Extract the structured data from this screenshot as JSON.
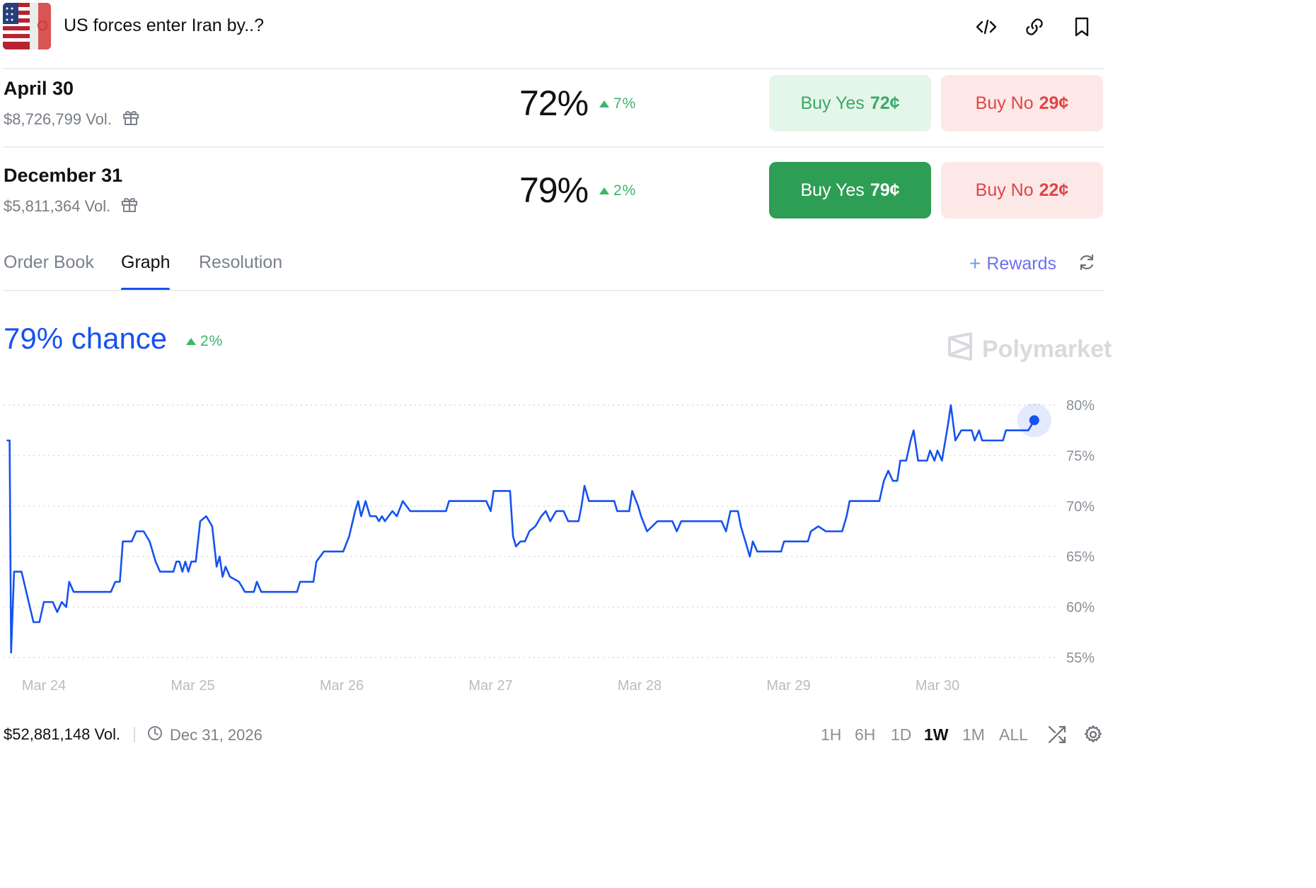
{
  "header": {
    "title": "US forces enter Iran by..?",
    "icons": [
      "embed-code-icon",
      "link-icon",
      "bookmark-icon"
    ]
  },
  "markets": [
    {
      "label": "April 30",
      "volume": "$8,726,799 Vol.",
      "percent": "72%",
      "change": "7%",
      "buy_yes_label": "Buy Yes",
      "buy_yes_price": "72¢",
      "buy_no_label": "Buy No",
      "buy_no_price": "29¢"
    },
    {
      "label": "December 31",
      "volume": "$5,811,364 Vol.",
      "percent": "79%",
      "change": "2%",
      "buy_yes_label": "Buy Yes",
      "buy_yes_price": "79¢",
      "buy_no_label": "Buy No",
      "buy_no_price": "22¢"
    }
  ],
  "tabs": [
    "Order Book",
    "Graph",
    "Resolution"
  ],
  "active_tab": "Graph",
  "rewards_label": "Rewards",
  "chance": {
    "text": "79% chance",
    "change": "2%"
  },
  "watermark": "Polymarket",
  "colors": {
    "line": "#1652f0",
    "up": "#3bb56b",
    "down": "#e04545",
    "yes_solid": "#2e9e55"
  },
  "chart_data": {
    "type": "line",
    "x_ticks": [
      "Mar 24",
      "Mar 25",
      "Mar 26",
      "Mar 27",
      "Mar 28",
      "Mar 29",
      "Mar 30"
    ],
    "y_ticks": [
      "55%",
      "60%",
      "65%",
      "70%",
      "75%",
      "80%"
    ],
    "ylim": [
      55,
      80
    ],
    "grid": true,
    "series": [
      {
        "values": [
          [
            0.0,
            76.5
          ],
          [
            0.02,
            76.5
          ],
          [
            0.03,
            55.5
          ],
          [
            0.05,
            63.5
          ],
          [
            0.1,
            63.5
          ],
          [
            0.18,
            58.5
          ],
          [
            0.22,
            58.5
          ],
          [
            0.25,
            60.5
          ],
          [
            0.31,
            60.5
          ],
          [
            0.34,
            59.5
          ],
          [
            0.37,
            60.5
          ],
          [
            0.4,
            60.0
          ],
          [
            0.42,
            62.5
          ],
          [
            0.45,
            61.5
          ],
          [
            0.7,
            61.5
          ],
          [
            0.73,
            62.5
          ],
          [
            0.76,
            62.5
          ],
          [
            0.78,
            66.5
          ],
          [
            0.84,
            66.5
          ],
          [
            0.87,
            67.5
          ],
          [
            0.92,
            67.5
          ],
          [
            0.96,
            66.5
          ],
          [
            1.0,
            64.5
          ],
          [
            1.03,
            63.5
          ],
          [
            1.12,
            63.5
          ],
          [
            1.14,
            64.5
          ],
          [
            1.16,
            64.5
          ],
          [
            1.18,
            63.5
          ],
          [
            1.2,
            64.5
          ],
          [
            1.22,
            63.5
          ],
          [
            1.24,
            64.5
          ],
          [
            1.27,
            64.5
          ],
          [
            1.3,
            68.5
          ],
          [
            1.34,
            69.0
          ],
          [
            1.36,
            68.5
          ],
          [
            1.38,
            68.0
          ],
          [
            1.41,
            64.0
          ],
          [
            1.43,
            65.0
          ],
          [
            1.45,
            63.0
          ],
          [
            1.47,
            64.0
          ],
          [
            1.5,
            63.0
          ],
          [
            1.56,
            62.5
          ],
          [
            1.6,
            61.5
          ],
          [
            1.66,
            61.5
          ],
          [
            1.68,
            62.5
          ],
          [
            1.71,
            61.5
          ],
          [
            1.95,
            61.5
          ],
          [
            1.97,
            62.5
          ],
          [
            2.06,
            62.5
          ],
          [
            2.08,
            64.5
          ],
          [
            2.13,
            65.5
          ],
          [
            2.26,
            65.5
          ],
          [
            2.3,
            67.0
          ],
          [
            2.34,
            69.5
          ],
          [
            2.36,
            70.5
          ],
          [
            2.38,
            69.0
          ],
          [
            2.41,
            70.5
          ],
          [
            2.44,
            69.0
          ],
          [
            2.48,
            69.0
          ],
          [
            2.5,
            68.5
          ],
          [
            2.52,
            69.0
          ],
          [
            2.54,
            68.5
          ],
          [
            2.59,
            69.5
          ],
          [
            2.62,
            69.0
          ],
          [
            2.66,
            70.5
          ],
          [
            2.71,
            69.5
          ],
          [
            2.95,
            69.5
          ],
          [
            2.97,
            70.5
          ],
          [
            3.22,
            70.5
          ],
          [
            3.25,
            69.5
          ],
          [
            3.27,
            71.5
          ],
          [
            3.38,
            71.5
          ],
          [
            3.4,
            67.0
          ],
          [
            3.42,
            66.0
          ],
          [
            3.45,
            66.5
          ],
          [
            3.48,
            66.5
          ],
          [
            3.51,
            67.5
          ],
          [
            3.55,
            68.0
          ],
          [
            3.59,
            69.0
          ],
          [
            3.62,
            69.5
          ],
          [
            3.65,
            68.5
          ],
          [
            3.69,
            69.5
          ],
          [
            3.74,
            69.5
          ],
          [
            3.77,
            68.5
          ],
          [
            3.84,
            68.5
          ],
          [
            3.86,
            70.0
          ],
          [
            3.88,
            72.0
          ],
          [
            3.91,
            70.5
          ],
          [
            4.08,
            70.5
          ],
          [
            4.1,
            69.5
          ],
          [
            4.18,
            69.5
          ],
          [
            4.2,
            71.5
          ],
          [
            4.24,
            70.0
          ],
          [
            4.26,
            69.0
          ],
          [
            4.3,
            67.5
          ],
          [
            4.37,
            68.5
          ],
          [
            4.47,
            68.5
          ],
          [
            4.5,
            67.5
          ],
          [
            4.53,
            68.5
          ],
          [
            4.8,
            68.5
          ],
          [
            4.83,
            67.5
          ],
          [
            4.86,
            69.5
          ],
          [
            4.91,
            69.5
          ],
          [
            4.93,
            68.0
          ],
          [
            4.96,
            66.5
          ],
          [
            4.99,
            65.0
          ],
          [
            5.01,
            66.5
          ],
          [
            5.04,
            65.5
          ],
          [
            5.2,
            65.5
          ],
          [
            5.22,
            66.5
          ],
          [
            5.38,
            66.5
          ],
          [
            5.4,
            67.5
          ],
          [
            5.45,
            68.0
          ],
          [
            5.5,
            67.5
          ],
          [
            5.61,
            67.5
          ],
          [
            5.64,
            69.0
          ],
          [
            5.66,
            70.5
          ],
          [
            5.86,
            70.5
          ],
          [
            5.89,
            72.5
          ],
          [
            5.92,
            73.5
          ],
          [
            5.95,
            72.5
          ],
          [
            5.98,
            72.5
          ],
          [
            6.0,
            74.5
          ],
          [
            6.04,
            74.5
          ],
          [
            6.07,
            76.5
          ],
          [
            6.09,
            77.5
          ],
          [
            6.12,
            74.5
          ],
          [
            6.18,
            74.5
          ],
          [
            6.2,
            75.5
          ],
          [
            6.23,
            74.5
          ],
          [
            6.25,
            75.5
          ],
          [
            6.28,
            74.5
          ],
          [
            6.32,
            78.0
          ],
          [
            6.34,
            80.0
          ],
          [
            6.37,
            76.5
          ],
          [
            6.41,
            77.5
          ],
          [
            6.48,
            77.5
          ],
          [
            6.5,
            76.5
          ],
          [
            6.53,
            77.5
          ],
          [
            6.55,
            76.5
          ],
          [
            6.69,
            76.5
          ],
          [
            6.71,
            77.5
          ],
          [
            6.86,
            77.5
          ],
          [
            6.9,
            78.5
          ]
        ]
      }
    ]
  },
  "footer": {
    "volume": "$52,881,148 Vol.",
    "end_date": "Dec 31, 2026",
    "ranges": [
      "1H",
      "6H",
      "1D",
      "1W",
      "1M",
      "ALL"
    ],
    "active_range": "1W"
  }
}
